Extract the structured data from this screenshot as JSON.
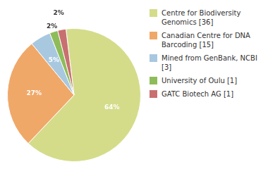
{
  "chart_data": {
    "type": "pie",
    "categories": [
      "Centre for Biodiversity\nGenomics [36]",
      "Canadian Centre for DNA\nBarcoding [15]",
      "Mined from GenBank, NCBI [3]",
      "University of Oulu [1]",
      "GATC Biotech AG [1]"
    ],
    "values": [
      64,
      27,
      5,
      2,
      2
    ],
    "value_labels": [
      "64%",
      "27%",
      "5%",
      "2%",
      "2%"
    ],
    "colors": [
      "#d4dc8a",
      "#f0a868",
      "#a8c8e0",
      "#8fbc5a",
      "#c87070"
    ],
    "data_labels": true,
    "legend": "right"
  }
}
